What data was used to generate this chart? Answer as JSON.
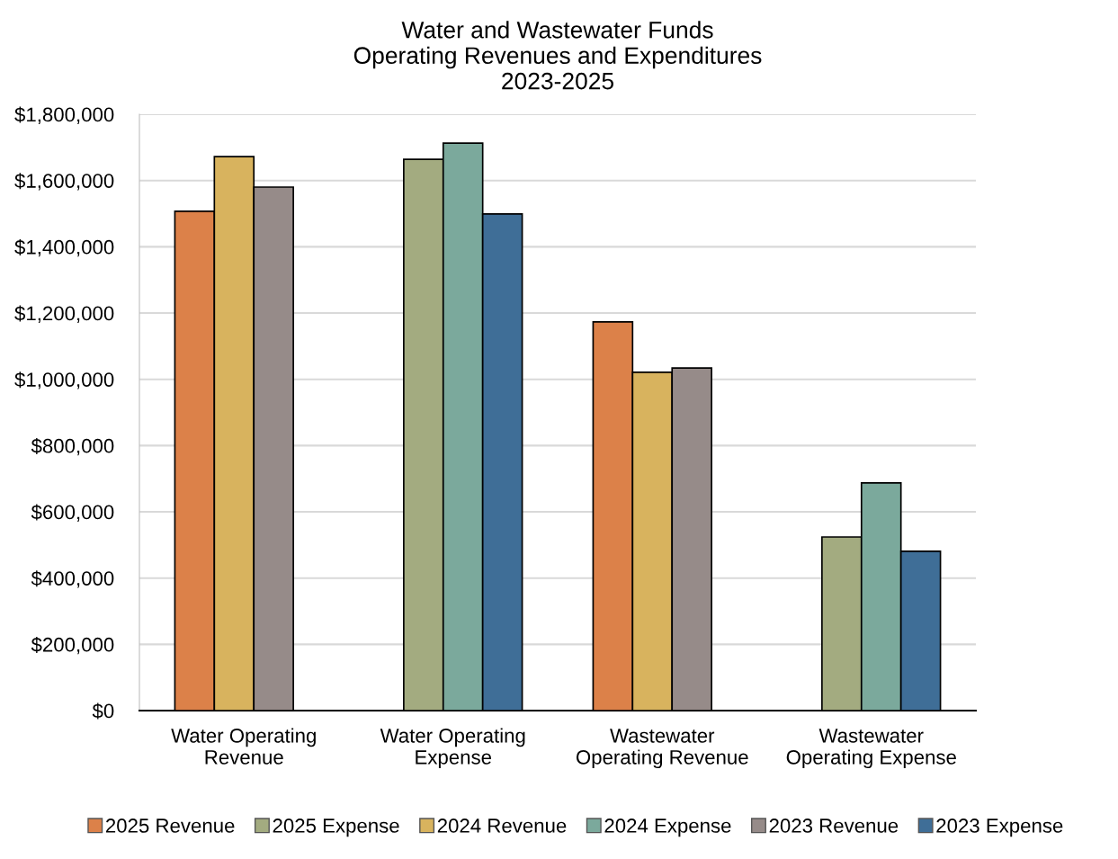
{
  "chart_data": {
    "type": "bar",
    "title": "Water and Wastewater Funds\nOperating Revenues and Expenditures\n2023-2025",
    "categories": [
      "Water Operating\nRevenue",
      "Water Operating\nExpense",
      "Wastewater\nOperating Revenue",
      "Wastewater\nOperating Expense"
    ],
    "series": [
      {
        "name": "2025 Revenue",
        "color": "#dc8149",
        "values": [
          1507000,
          null,
          1173000,
          null
        ]
      },
      {
        "name": "2025 Expense",
        "color": "#a3ab80",
        "values": [
          null,
          1664000,
          null,
          524000
        ]
      },
      {
        "name": "2024 Revenue",
        "color": "#d8b35e",
        "values": [
          1672000,
          null,
          1021000,
          null
        ]
      },
      {
        "name": "2024 Expense",
        "color": "#7ba99c",
        "values": [
          null,
          1713000,
          null,
          687000
        ]
      },
      {
        "name": "2023 Revenue",
        "color": "#968b89",
        "values": [
          1580000,
          null,
          1034000,
          null
        ]
      },
      {
        "name": "2023 Expense",
        "color": "#3f6e97",
        "values": [
          null,
          1499000,
          null,
          481000
        ]
      }
    ],
    "ylim": [
      0,
      1800000
    ],
    "yticks": [
      {
        "value": 0,
        "label": "$0"
      },
      {
        "value": 200000,
        "label": "$200,000"
      },
      {
        "value": 400000,
        "label": "$400,000"
      },
      {
        "value": 600000,
        "label": "$600,000"
      },
      {
        "value": 800000,
        "label": "$800,000"
      },
      {
        "value": 1000000,
        "label": "$1,000,000"
      },
      {
        "value": 1200000,
        "label": "$1,200,000"
      },
      {
        "value": 1400000,
        "label": "$1,400,000"
      },
      {
        "value": 1600000,
        "label": "$1,600,000"
      },
      {
        "value": 1800000,
        "label": "$1,800,000"
      }
    ],
    "grid": "y",
    "legend": "bottom"
  }
}
